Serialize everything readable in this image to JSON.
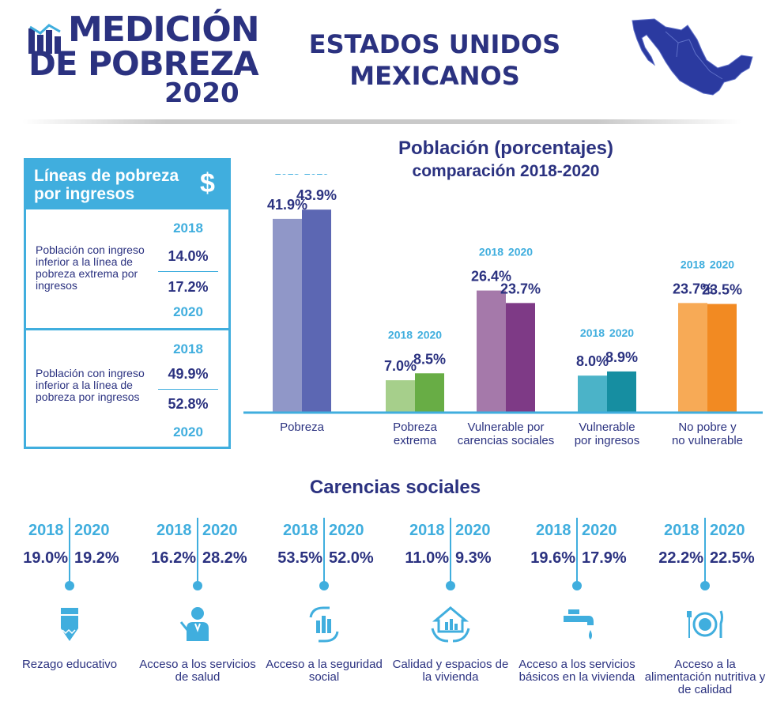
{
  "header": {
    "logo_line1": "MEDICIÓN",
    "logo_line2": "DE POBREZA",
    "logo_line3": "2020",
    "country_line1": "ESTADOS UNIDOS",
    "country_line2": "MEXICANOS"
  },
  "colors": {
    "navy": "#2b3280",
    "cyan": "#40aede",
    "pobreza": [
      "#9097c8",
      "#5c67b3"
    ],
    "pobreza_extrema": [
      "#a6cf8b",
      "#68ad45"
    ],
    "vulnerable_carencias": [
      "#a579aa",
      "#7e3a86"
    ],
    "vulnerable_ingresos": [
      "#4bb3c8",
      "#168ea1"
    ],
    "no_pobre": [
      "#f7aa56",
      "#f28a22"
    ]
  },
  "panel": {
    "title": "Líneas de pobreza por ingresos",
    "icon": "dollar-icon",
    "rows": [
      {
        "description": "Población con ingreso inferior a la línea de pobreza extrema por ingresos",
        "year_top": "2018",
        "value_top": "14.0%",
        "value_bottom": "17.2%",
        "year_bottom": "2020"
      },
      {
        "description": "Población con ingreso inferior a la línea de pobreza por ingresos",
        "year_top": "2018",
        "value_top": "49.9%",
        "value_bottom": "52.8%",
        "year_bottom": "2020"
      }
    ]
  },
  "chart_data": {
    "type": "bar",
    "title": "Población (porcentajes)",
    "subtitle": "comparación 2018-2020",
    "categories": [
      "Pobreza",
      "Pobreza extrema",
      "Vulnerable por carencias sociales",
      "Vulnerable por ingresos",
      "No pobre y no vulnerable"
    ],
    "category_lines": [
      [
        "Pobreza"
      ],
      [
        "Pobreza",
        "extrema"
      ],
      [
        "Vulnerable por",
        "carencias sociales"
      ],
      [
        "Vulnerable",
        "por ingresos"
      ],
      [
        "No pobre y",
        "no vulnerable"
      ]
    ],
    "series": [
      {
        "name": "2018",
        "values": [
          41.9,
          7.0,
          26.4,
          8.0,
          23.7
        ],
        "labels": [
          "41.9%",
          "7.0%",
          "26.4%",
          "8.0%",
          "23.7%"
        ]
      },
      {
        "name": "2020",
        "values": [
          43.9,
          8.5,
          23.7,
          8.9,
          23.5
        ],
        "labels": [
          "43.9%",
          "8.5%",
          "23.7%",
          "8.9%",
          "23.5%"
        ]
      }
    ],
    "ylim": [
      0,
      50
    ],
    "grid": false,
    "legend": "year labels above each bar"
  },
  "carencias": {
    "title": "Carencias sociales",
    "year_left": "2018",
    "year_right": "2020",
    "items": [
      {
        "v2018": "19.0%",
        "v2020": "19.2%",
        "label": "Rezago educativo",
        "icon": "pencil-icon"
      },
      {
        "v2018": "16.2%",
        "v2020": "28.2%",
        "label": "Acceso a los servicios de salud",
        "icon": "doctor-icon"
      },
      {
        "v2018": "53.5%",
        "v2020": "52.0%",
        "label": "Acceso a la seguridad social",
        "icon": "social-security-icon"
      },
      {
        "v2018": "11.0%",
        "v2020": "9.3%",
        "label": "Calidad y espacios de la vivienda",
        "icon": "house-hands-icon"
      },
      {
        "v2018": "19.6%",
        "v2020": "17.9%",
        "label": "Acceso a los servicios básicos en la vivienda",
        "icon": "faucet-icon"
      },
      {
        "v2018": "22.2%",
        "v2020": "22.5%",
        "label": "Acceso a la alimentación nutritiva y de calidad",
        "icon": "plate-icon"
      }
    ]
  }
}
